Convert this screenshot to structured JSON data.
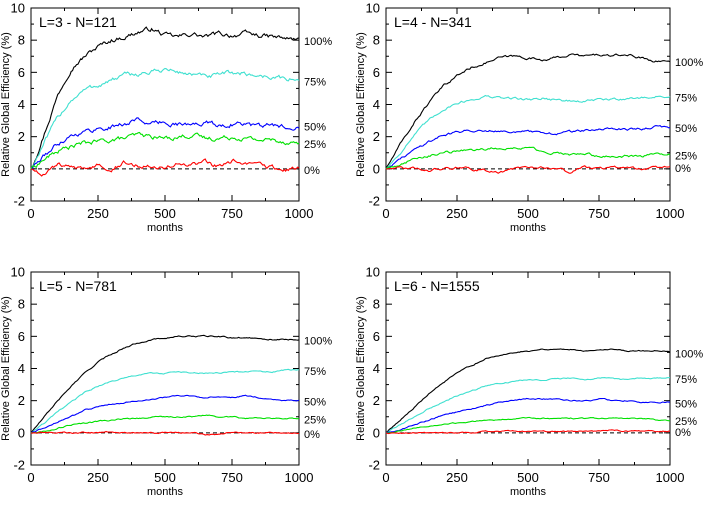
{
  "chart_data": [
    {
      "type": "line",
      "title": "L=3 - N=121",
      "xlabel": "months",
      "ylabel": "Relative Global Efficiency (%)",
      "xlim": [
        0,
        1000
      ],
      "ylim": [
        -2,
        10
      ],
      "xticks": [
        0,
        250,
        500,
        750,
        1000
      ],
      "yticks": [
        -2,
        0,
        2,
        4,
        6,
        8,
        10
      ],
      "reference_line": 0,
      "x": [
        0,
        50,
        100,
        150,
        200,
        250,
        300,
        350,
        400,
        450,
        500,
        550,
        600,
        650,
        700,
        750,
        800,
        850,
        900,
        950,
        1000
      ],
      "series": [
        {
          "name": "100%",
          "color": "#000000",
          "values": [
            0,
            2.2,
            4.6,
            6.3,
            7.0,
            7.6,
            8.0,
            8.2,
            8.5,
            8.7,
            8.3,
            8.2,
            8.4,
            8.2,
            8.4,
            8.3,
            8.4,
            8.3,
            8.2,
            8.1,
            8.0
          ]
        },
        {
          "name": "75%",
          "color": "#40e0d0",
          "values": [
            0,
            1.6,
            3.2,
            4.3,
            4.9,
            5.2,
            5.5,
            5.8,
            5.9,
            6.0,
            6.2,
            6.0,
            5.9,
            5.7,
            5.8,
            6.0,
            5.9,
            5.8,
            5.7,
            5.6,
            5.5
          ]
        },
        {
          "name": "50%",
          "color": "#0000ff",
          "values": [
            0,
            0.8,
            1.6,
            2.1,
            2.3,
            2.5,
            2.6,
            2.8,
            3.1,
            2.8,
            2.9,
            2.8,
            2.7,
            2.9,
            2.7,
            2.8,
            2.8,
            2.6,
            2.7,
            2.6,
            2.7
          ]
        },
        {
          "name": "25%",
          "color": "#00e000",
          "values": [
            0,
            0.6,
            1.1,
            1.4,
            1.6,
            1.7,
            1.8,
            1.9,
            2.1,
            2.0,
            1.9,
            2.0,
            2.1,
            1.9,
            1.9,
            2.0,
            1.9,
            1.8,
            1.8,
            1.7,
            1.6
          ]
        },
        {
          "name": "0%",
          "color": "#ff0000",
          "values": [
            0,
            -0.3,
            0.2,
            0.1,
            -0.1,
            0.3,
            0.1,
            0.4,
            0.2,
            0.3,
            0.1,
            0.3,
            0.2,
            0.4,
            0.1,
            0.5,
            0.3,
            0.2,
            0.1,
            0.0,
            0.0
          ]
        }
      ]
    },
    {
      "type": "line",
      "title": "L=4 - N=341",
      "xlabel": "months",
      "ylabel": "Relative Global Efficiency (%)",
      "xlim": [
        0,
        1000
      ],
      "ylim": [
        -2,
        10
      ],
      "xticks": [
        0,
        250,
        500,
        750,
        1000
      ],
      "yticks": [
        -2,
        0,
        2,
        4,
        6,
        8,
        10
      ],
      "reference_line": 0,
      "x": [
        0,
        50,
        100,
        150,
        200,
        250,
        300,
        350,
        400,
        450,
        500,
        550,
        600,
        650,
        700,
        750,
        800,
        850,
        900,
        950,
        1000
      ],
      "series": [
        {
          "name": "100%",
          "color": "#000000",
          "values": [
            0,
            1.5,
            2.9,
            4.1,
            5.1,
            5.8,
            6.3,
            6.6,
            6.9,
            7.0,
            6.9,
            6.8,
            6.9,
            7.1,
            7.0,
            7.1,
            7.0,
            7.1,
            6.9,
            6.7,
            6.7
          ]
        },
        {
          "name": "75%",
          "color": "#40e0d0",
          "values": [
            0,
            1.0,
            2.1,
            3.0,
            3.7,
            4.1,
            4.3,
            4.5,
            4.4,
            4.4,
            4.3,
            4.4,
            4.3,
            4.2,
            4.2,
            4.3,
            4.3,
            4.4,
            4.4,
            4.5,
            4.5
          ]
        },
        {
          "name": "50%",
          "color": "#0000ff",
          "values": [
            0,
            0.6,
            1.2,
            1.7,
            2.1,
            2.3,
            2.4,
            2.4,
            2.4,
            2.3,
            2.3,
            2.2,
            2.2,
            2.3,
            2.4,
            2.4,
            2.5,
            2.5,
            2.5,
            2.6,
            2.6
          ]
        },
        {
          "name": "25%",
          "color": "#00e000",
          "values": [
            0,
            0.3,
            0.6,
            0.8,
            1.0,
            1.1,
            1.2,
            1.2,
            1.3,
            1.3,
            1.3,
            1.1,
            1.0,
            0.9,
            0.9,
            0.8,
            0.8,
            0.8,
            0.8,
            0.9,
            0.9
          ]
        },
        {
          "name": "0%",
          "color": "#ff0000",
          "values": [
            0,
            0.1,
            0.0,
            -0.1,
            0.0,
            0.1,
            0.0,
            -0.1,
            -0.2,
            0.0,
            0.1,
            0.1,
            0.0,
            -0.2,
            0.1,
            0.0,
            0.1,
            0.0,
            0.0,
            0.1,
            0.1
          ]
        }
      ]
    },
    {
      "type": "line",
      "title": "L=5 - N=781",
      "xlabel": "months",
      "ylabel": "Relative Global Efficiency (%)",
      "xlim": [
        0,
        1000
      ],
      "ylim": [
        -2,
        10
      ],
      "xticks": [
        0,
        250,
        500,
        750,
        1000
      ],
      "yticks": [
        -2,
        0,
        2,
        4,
        6,
        8,
        10
      ],
      "reference_line": 0,
      "x": [
        0,
        50,
        100,
        150,
        200,
        250,
        300,
        350,
        400,
        450,
        500,
        550,
        600,
        650,
        700,
        750,
        800,
        850,
        900,
        950,
        1000
      ],
      "series": [
        {
          "name": "100%",
          "color": "#000000",
          "values": [
            0,
            1.0,
            2.0,
            2.9,
            3.7,
            4.4,
            4.9,
            5.3,
            5.6,
            5.8,
            5.9,
            6.0,
            6.0,
            6.0,
            6.0,
            5.9,
            5.9,
            5.9,
            5.8,
            5.8,
            5.8
          ]
        },
        {
          "name": "75%",
          "color": "#40e0d0",
          "values": [
            0,
            0.6,
            1.3,
            1.9,
            2.5,
            2.9,
            3.2,
            3.4,
            3.6,
            3.7,
            3.7,
            3.8,
            3.7,
            3.7,
            3.7,
            3.8,
            3.8,
            3.8,
            3.8,
            3.9,
            3.9
          ]
        },
        {
          "name": "50%",
          "color": "#0000ff",
          "values": [
            0,
            0.3,
            0.7,
            1.0,
            1.4,
            1.6,
            1.8,
            1.9,
            2.0,
            2.1,
            2.2,
            2.3,
            2.3,
            2.2,
            2.2,
            2.2,
            2.3,
            2.2,
            2.1,
            2.0,
            2.0
          ]
        },
        {
          "name": "25%",
          "color": "#00e000",
          "values": [
            0,
            0.1,
            0.3,
            0.5,
            0.6,
            0.7,
            0.8,
            0.9,
            0.9,
            1.0,
            1.0,
            1.0,
            1.0,
            1.1,
            1.0,
            1.0,
            0.9,
            0.9,
            0.9,
            0.9,
            0.9
          ]
        },
        {
          "name": "0%",
          "color": "#ff0000",
          "values": [
            0,
            0.0,
            0.0,
            0.0,
            0.0,
            0.0,
            0.1,
            0.0,
            0.0,
            0.0,
            0.0,
            0.0,
            0.0,
            -0.1,
            -0.1,
            0.0,
            0.0,
            0.0,
            0.0,
            0.0,
            0.0
          ]
        }
      ]
    },
    {
      "type": "line",
      "title": "L=6 - N=1555",
      "xlabel": "months",
      "ylabel": "Relative Global Efficiency (%)",
      "xlim": [
        0,
        1000
      ],
      "ylim": [
        -2,
        10
      ],
      "xticks": [
        0,
        250,
        500,
        750,
        1000
      ],
      "yticks": [
        -2,
        0,
        2,
        4,
        6,
        8,
        10
      ],
      "reference_line": 0,
      "x": [
        0,
        50,
        100,
        150,
        200,
        250,
        300,
        350,
        400,
        450,
        500,
        550,
        600,
        650,
        700,
        750,
        800,
        850,
        900,
        950,
        1000
      ],
      "series": [
        {
          "name": "100%",
          "color": "#000000",
          "values": [
            0,
            0.8,
            1.6,
            2.4,
            3.1,
            3.7,
            4.2,
            4.6,
            4.8,
            5.0,
            5.1,
            5.2,
            5.2,
            5.2,
            5.1,
            5.2,
            5.2,
            5.1,
            5.1,
            5.1,
            5.0
          ]
        },
        {
          "name": "75%",
          "color": "#40e0d0",
          "values": [
            0,
            0.5,
            1.0,
            1.5,
            1.9,
            2.3,
            2.6,
            2.9,
            3.1,
            3.2,
            3.3,
            3.3,
            3.4,
            3.4,
            3.3,
            3.4,
            3.4,
            3.3,
            3.4,
            3.4,
            3.4
          ]
        },
        {
          "name": "50%",
          "color": "#0000ff",
          "values": [
            0,
            0.2,
            0.5,
            0.8,
            1.1,
            1.3,
            1.5,
            1.7,
            1.9,
            2.0,
            2.1,
            2.1,
            2.1,
            2.0,
            2.0,
            2.1,
            2.0,
            2.0,
            1.9,
            1.9,
            1.9
          ]
        },
        {
          "name": "25%",
          "color": "#00e000",
          "values": [
            0,
            0.1,
            0.3,
            0.4,
            0.5,
            0.6,
            0.7,
            0.8,
            0.8,
            0.9,
            0.9,
            0.9,
            0.9,
            0.9,
            0.9,
            0.9,
            0.9,
            0.9,
            0.9,
            0.8,
            0.8
          ]
        },
        {
          "name": "0%",
          "color": "#ff0000",
          "values": [
            0,
            0.0,
            0.0,
            0.0,
            0.0,
            0.0,
            0.0,
            0.1,
            0.1,
            0.1,
            0.1,
            0.1,
            0.1,
            0.1,
            0.1,
            0.1,
            0.2,
            0.1,
            0.1,
            0.1,
            0.1
          ]
        }
      ]
    }
  ]
}
